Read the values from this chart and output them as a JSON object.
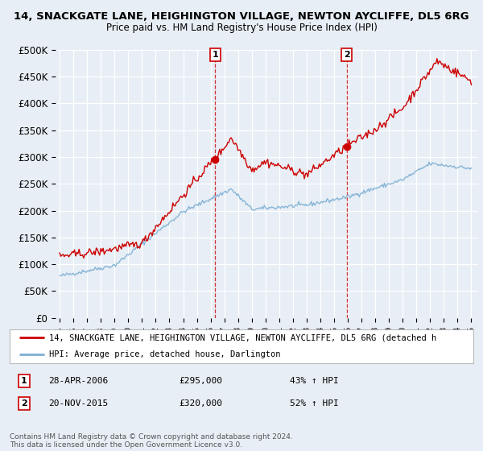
{
  "title": "14, SNACKGATE LANE, HEIGHINGTON VILLAGE, NEWTON AYCLIFFE, DL5 6RG",
  "subtitle": "Price paid vs. HM Land Registry's House Price Index (HPI)",
  "ylim": [
    0,
    500000
  ],
  "ytick_labels": [
    "£0",
    "£50K",
    "£100K",
    "£150K",
    "£200K",
    "£250K",
    "£300K",
    "£350K",
    "£400K",
    "£450K",
    "£500K"
  ],
  "bg_color": "#e8eef5",
  "red_line_color": "#cc0000",
  "blue_line_color": "#7bafd4",
  "sale1_x": 2006.33,
  "sale1_price": 295000,
  "sale2_x": 2015.92,
  "sale2_price": 320000,
  "legend_red_label": "14, SNACKGATE LANE, HEIGHINGTON VILLAGE, NEWTON AYCLIFFE, DL5 6RG (detached h",
  "legend_blue_label": "HPI: Average price, detached house, Darlington",
  "note1_num": "1",
  "note1_date": "28-APR-2006",
  "note1_price": "£295,000",
  "note1_hpi": "43% ↑ HPI",
  "note2_num": "2",
  "note2_date": "20-NOV-2015",
  "note2_price": "£320,000",
  "note2_hpi": "52% ↑ HPI",
  "copyright_text": "Contains HM Land Registry data © Crown copyright and database right 2024.\nThis data is licensed under the Open Government Licence v3.0."
}
